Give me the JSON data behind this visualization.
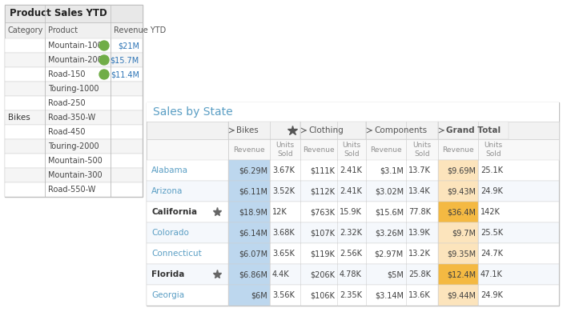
{
  "table1": {
    "title": "Product Sales YTD",
    "category": "Bikes",
    "products": [
      "Mountain-100",
      "Mountain-200",
      "Road-150",
      "Touring-1000",
      "Road-250",
      "Road-350-W",
      "Road-450",
      "Touring-2000",
      "Mountain-500",
      "Mountain-300",
      "Road-550-W"
    ],
    "products_with_dot": [
      "Mountain-100",
      "Mountain-200",
      "Road-150"
    ],
    "revenues": [
      "$21M",
      "$15.7M",
      "$11.4M"
    ]
  },
  "table2": {
    "title": "Sales by State",
    "col_groups": [
      "Bikes",
      "Clothing",
      "Components",
      "Grand Total"
    ],
    "col_headers": [
      "Revenue",
      "Units\nSold",
      "Revenue",
      "Units\nSold",
      "Revenue",
      "Units\nSold",
      "Revenue",
      "Units\nSold"
    ],
    "states": [
      "Alabama",
      "Arizona",
      "California",
      "Colorado",
      "Connecticut",
      "Florida",
      "Georgia"
    ],
    "starred": [
      "California",
      "Florida"
    ],
    "data": [
      [
        "$6.29M",
        "3.67K",
        "$111K",
        "2.41K",
        "$3.1M",
        "13.7K",
        "$9.69M",
        "25.1K"
      ],
      [
        "$6.11M",
        "3.52K",
        "$112K",
        "2.41K",
        "$3.02M",
        "13.4K",
        "$9.43M",
        "24.9K"
      ],
      [
        "$18.9M",
        "12K",
        "$763K",
        "15.9K",
        "$15.6M",
        "77.8K",
        "$36.4M",
        "142K"
      ],
      [
        "$6.14M",
        "3.68K",
        "$107K",
        "2.32K",
        "$3.26M",
        "13.9K",
        "$9.7M",
        "25.5K"
      ],
      [
        "$6.07M",
        "3.65K",
        "$119K",
        "2.56K",
        "$2.97M",
        "13.2K",
        "$9.35M",
        "24.7K"
      ],
      [
        "$6.86M",
        "4.4K",
        "$206K",
        "4.78K",
        "$5M",
        "25.8K",
        "$12.4M",
        "47.1K"
      ],
      [
        "$6M",
        "3.56K",
        "$106K",
        "2.35K",
        "$3.14M",
        "13.6K",
        "$9.44M",
        "24.9K"
      ]
    ],
    "bike_rev_bg": "#bdd7ee",
    "gt_rev_bg_normal": "#fce4bc",
    "gt_rev_bg_high": "#f4b942",
    "border_color": "#d0d0d0",
    "title_color": "#5a9ec4",
    "state_color": "#5a9ec4",
    "data_color": "#404040",
    "col_header_color": "#909090"
  }
}
